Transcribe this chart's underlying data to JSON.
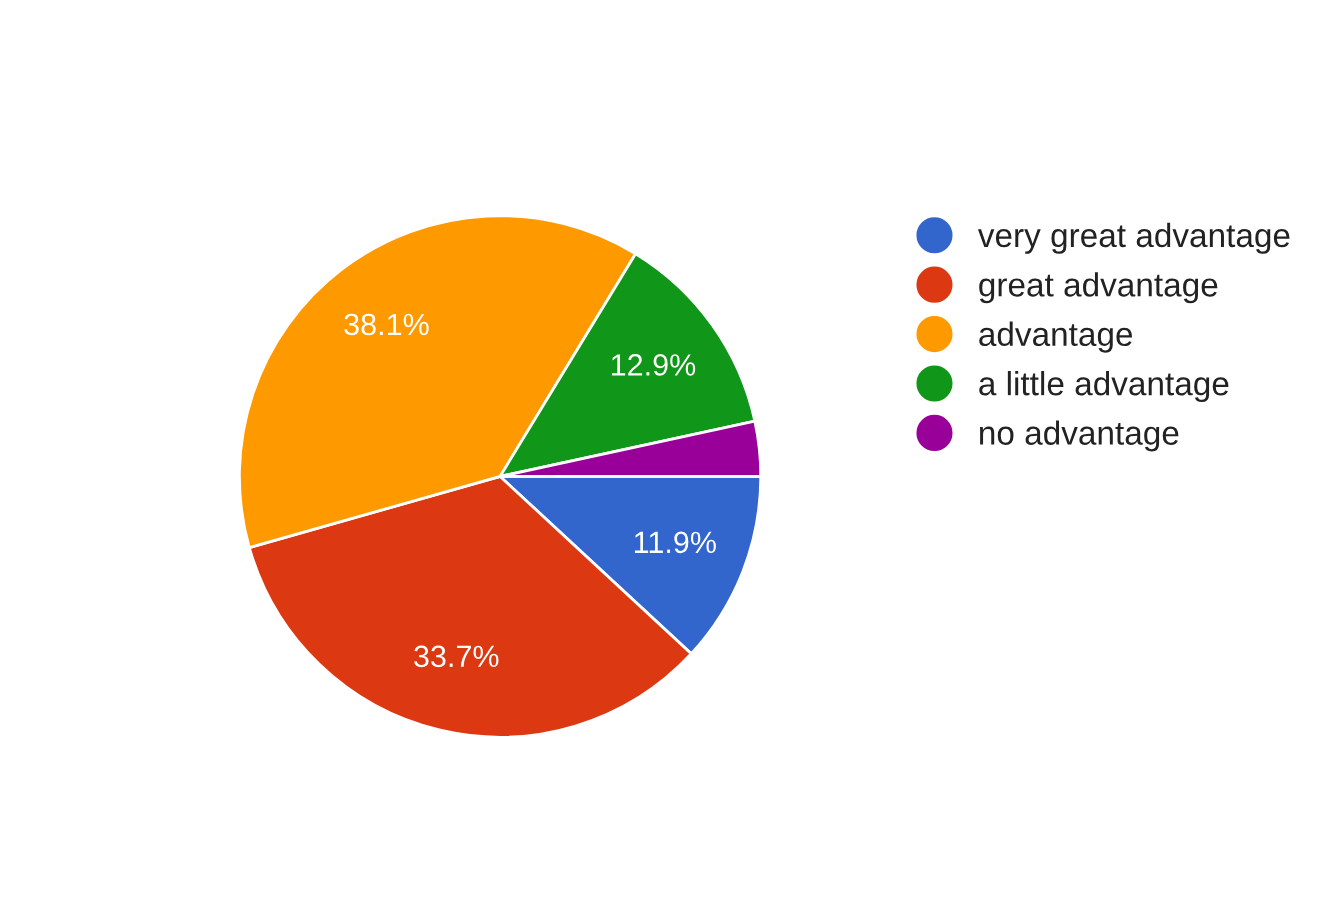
{
  "chart_data": {
    "type": "pie",
    "categories": [
      "very great advantage",
      "great advantage",
      "advantage",
      "a little advantage",
      "no advantage"
    ],
    "values": [
      11.9,
      33.7,
      38.1,
      12.9,
      3.4
    ],
    "colors": [
      "#3366cc",
      "#dc3912",
      "#ff9900",
      "#109618",
      "#990099"
    ],
    "value_labels": [
      "11.9%",
      "33.7%",
      "38.1%",
      "12.9%",
      null
    ],
    "legend": "right"
  }
}
